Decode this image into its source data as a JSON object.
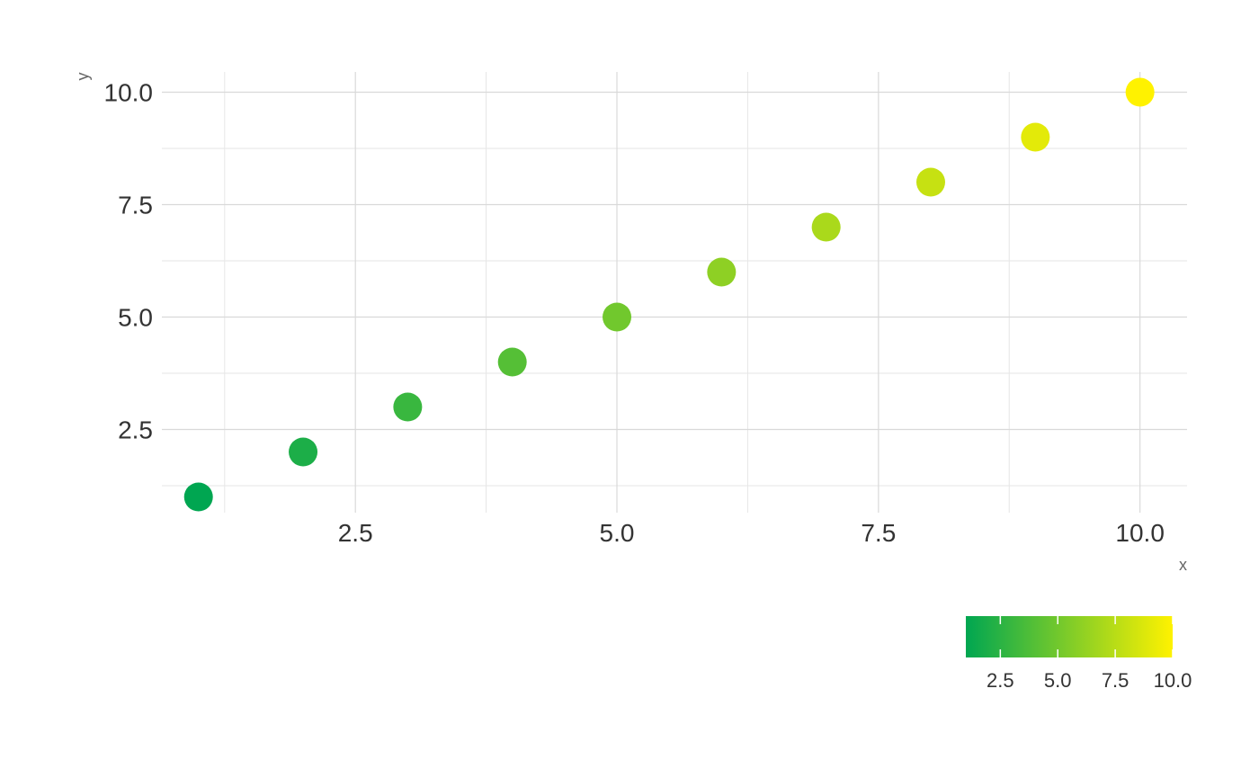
{
  "chart_data": {
    "type": "scatter",
    "title": "",
    "xlabel": "x",
    "ylabel": "y",
    "xlim": [
      0.65,
      10.45
    ],
    "ylim": [
      0.65,
      10.45
    ],
    "x_ticks": [
      2.5,
      5.0,
      7.5,
      10.0
    ],
    "y_ticks": [
      2.5,
      5.0,
      7.5,
      10.0
    ],
    "x_tick_labels": [
      "2.5",
      "5.0",
      "7.5",
      "10.0"
    ],
    "y_tick_labels": [
      "2.5",
      "5.0",
      "7.5",
      "10.0"
    ],
    "grid": true,
    "points": [
      {
        "x": 1,
        "y": 1,
        "color_value": 1
      },
      {
        "x": 2,
        "y": 2,
        "color_value": 2
      },
      {
        "x": 3,
        "y": 3,
        "color_value": 3
      },
      {
        "x": 4,
        "y": 4,
        "color_value": 4
      },
      {
        "x": 5,
        "y": 5,
        "color_value": 5
      },
      {
        "x": 6,
        "y": 6,
        "color_value": 6
      },
      {
        "x": 7,
        "y": 7,
        "color_value": 7
      },
      {
        "x": 8,
        "y": 8,
        "color_value": 8
      },
      {
        "x": 9,
        "y": 9,
        "color_value": 9
      },
      {
        "x": 10,
        "y": 10,
        "color_value": 10
      }
    ],
    "colorbar": {
      "placement": "bottom-right",
      "range": [
        1,
        10
      ],
      "low_color": "#00a651",
      "high_color": "#fff200",
      "ticks": [
        2.5,
        5.0,
        7.5,
        10.0
      ],
      "tick_labels": [
        "2.5",
        "5.0",
        "7.5",
        "10.0"
      ]
    }
  }
}
